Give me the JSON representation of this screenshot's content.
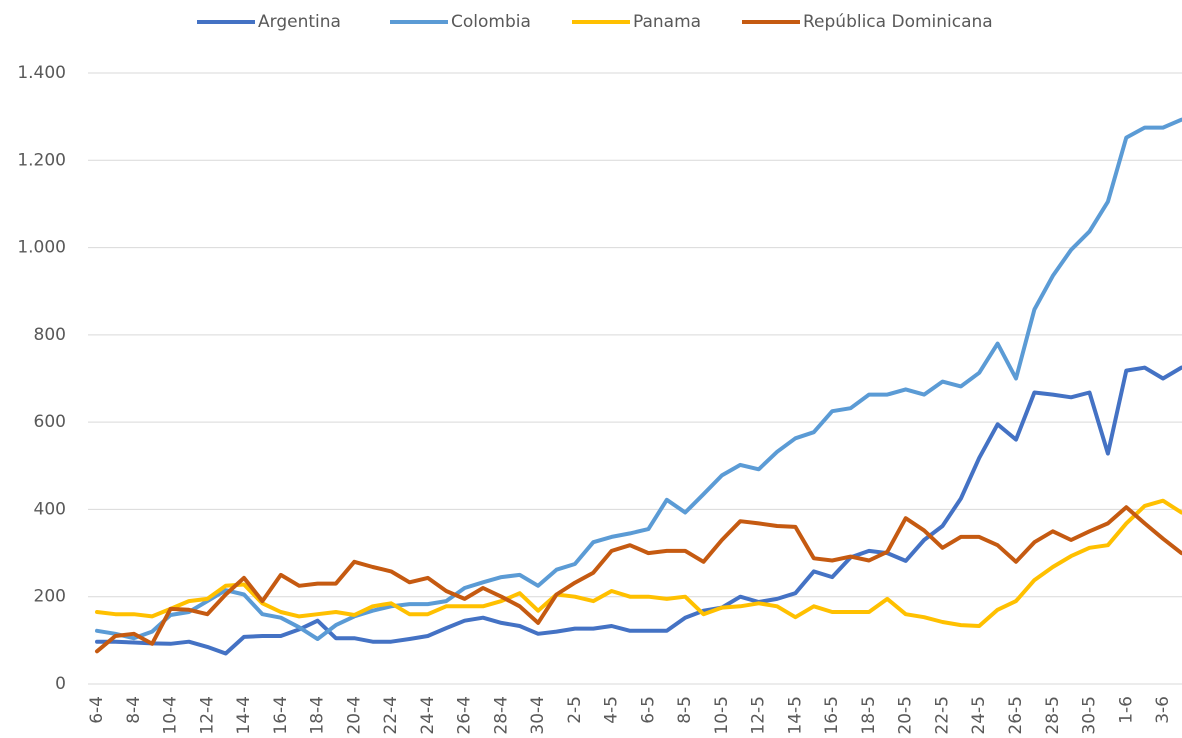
{
  "chart_data": {
    "type": "line",
    "categories": [
      "6-4",
      null,
      "8-4",
      null,
      "10-4",
      null,
      "12-4",
      null,
      "14-4",
      null,
      "16-4",
      null,
      "18-4",
      null,
      "20-4",
      null,
      "22-4",
      null,
      "24-4",
      null,
      "26-4",
      null,
      "28-4",
      null,
      "30-4",
      null,
      "2-5",
      null,
      "4-5",
      null,
      "6-5",
      null,
      "8-5",
      null,
      "10-5",
      null,
      "12-5",
      null,
      "14-5",
      null,
      "16-5",
      null,
      "18-5",
      null,
      "20-5",
      null,
      "22-5",
      null,
      "24-5",
      null,
      "26-5",
      null,
      "28-5",
      null,
      "30-5",
      null,
      "1-6",
      null,
      "3-6",
      null
    ],
    "series": [
      {
        "name": "Argentina",
        "color": "#4472c4",
        "values": [
          97,
          97,
          95,
          93,
          92,
          97,
          85,
          70,
          108,
          110,
          110,
          125,
          145,
          105,
          105,
          97,
          97,
          103,
          110,
          128,
          145,
          152,
          140,
          133,
          115,
          120,
          127,
          127,
          133,
          122,
          122,
          122,
          152,
          168,
          175,
          200,
          188,
          195,
          208,
          258,
          245,
          290,
          305,
          300,
          282,
          330,
          362,
          425,
          518,
          595,
          560,
          668,
          663,
          657,
          668,
          528,
          718,
          725,
          700,
          725
        ]
      },
      {
        "name": "Colombia",
        "color": "#5b9bd5",
        "values": [
          122,
          115,
          105,
          120,
          158,
          165,
          190,
          215,
          205,
          160,
          152,
          130,
          103,
          135,
          155,
          168,
          178,
          183,
          183,
          190,
          220,
          233,
          245,
          250,
          225,
          262,
          275,
          325,
          337,
          345,
          355,
          422,
          393,
          435,
          478,
          502,
          492,
          532,
          563,
          577,
          625,
          632,
          663,
          663,
          675,
          663,
          693,
          682,
          713,
          780,
          700,
          858,
          935,
          995,
          1037,
          1105,
          1252,
          1275,
          1275,
          1293
        ]
      },
      {
        "name": "Panama",
        "color": "#ffc000",
        "values": [
          165,
          160,
          160,
          155,
          172,
          190,
          195,
          225,
          228,
          185,
          165,
          155,
          160,
          165,
          158,
          178,
          185,
          160,
          160,
          178,
          178,
          178,
          190,
          208,
          168,
          205,
          200,
          190,
          213,
          200,
          200,
          195,
          200,
          160,
          175,
          178,
          185,
          178,
          153,
          178,
          165,
          165,
          165,
          195,
          160,
          153,
          142,
          135,
          133,
          170,
          190,
          238,
          268,
          293,
          312,
          318,
          368,
          408,
          420,
          393
        ]
      },
      {
        "name": "República Dominicana",
        "color": "#c55a11",
        "values": [
          75,
          110,
          115,
          92,
          172,
          170,
          160,
          205,
          243,
          190,
          250,
          225,
          230,
          230,
          280,
          268,
          258,
          233,
          243,
          213,
          195,
          220,
          200,
          178,
          140,
          205,
          232,
          255,
          305,
          318,
          300,
          305,
          305,
          280,
          330,
          373,
          368,
          362,
          360,
          288,
          283,
          292,
          283,
          303,
          380,
          352,
          312,
          337,
          337,
          318,
          280,
          325,
          350,
          330,
          350,
          368,
          405,
          368,
          333,
          300
        ]
      }
    ],
    "ylim": [
      0,
      1400
    ],
    "yticks": [
      0,
      200,
      400,
      600,
      800,
      {
        "value": 1000,
        "label": "1.000"
      },
      {
        "value": 1200,
        "label": "1.200"
      },
      {
        "value": 1400,
        "label": "1.400"
      }
    ],
    "grid": true,
    "legend": "top"
  }
}
